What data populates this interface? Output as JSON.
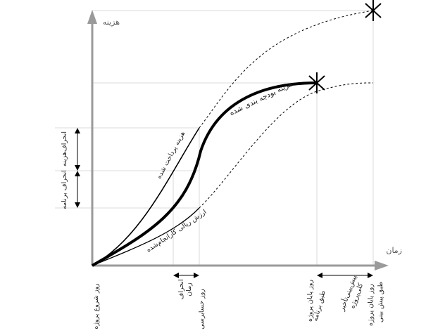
{
  "axes": {
    "y_label": "هزینه",
    "x_label": "زمان"
  },
  "curves": {
    "budget": "هزینه بودجه بندی شده",
    "actual_cost": "هزینه پرداخت شده",
    "earned_value": "ارزش ریالی کارانجام‌شده"
  },
  "vertical_brackets": {
    "cost_variance": "انحراف‌هزینه",
    "schedule_variance": "انحراف برنامه"
  },
  "time_brackets": {
    "time_variance": {
      "line1": "انحراف",
      "line2": "زمان"
    },
    "forecast_delay": {
      "line1": "پیش‌بینی‌تأخیر",
      "line2": "کلی‌پروژه"
    }
  },
  "x_markers": {
    "project_start": "روز شروع پروژه",
    "status_date": "روز حسابرسی",
    "planned_end": {
      "line1": "روز پایان پروژه",
      "line2": "طبق برنامه"
    },
    "forecast_end": {
      "line1": "روز پایان پروژه",
      "line2": "طبق پیش بینی"
    }
  },
  "colors": {
    "axis": "#9a9a9a",
    "curve": "#000000",
    "grid": "#c8c8c8"
  }
}
